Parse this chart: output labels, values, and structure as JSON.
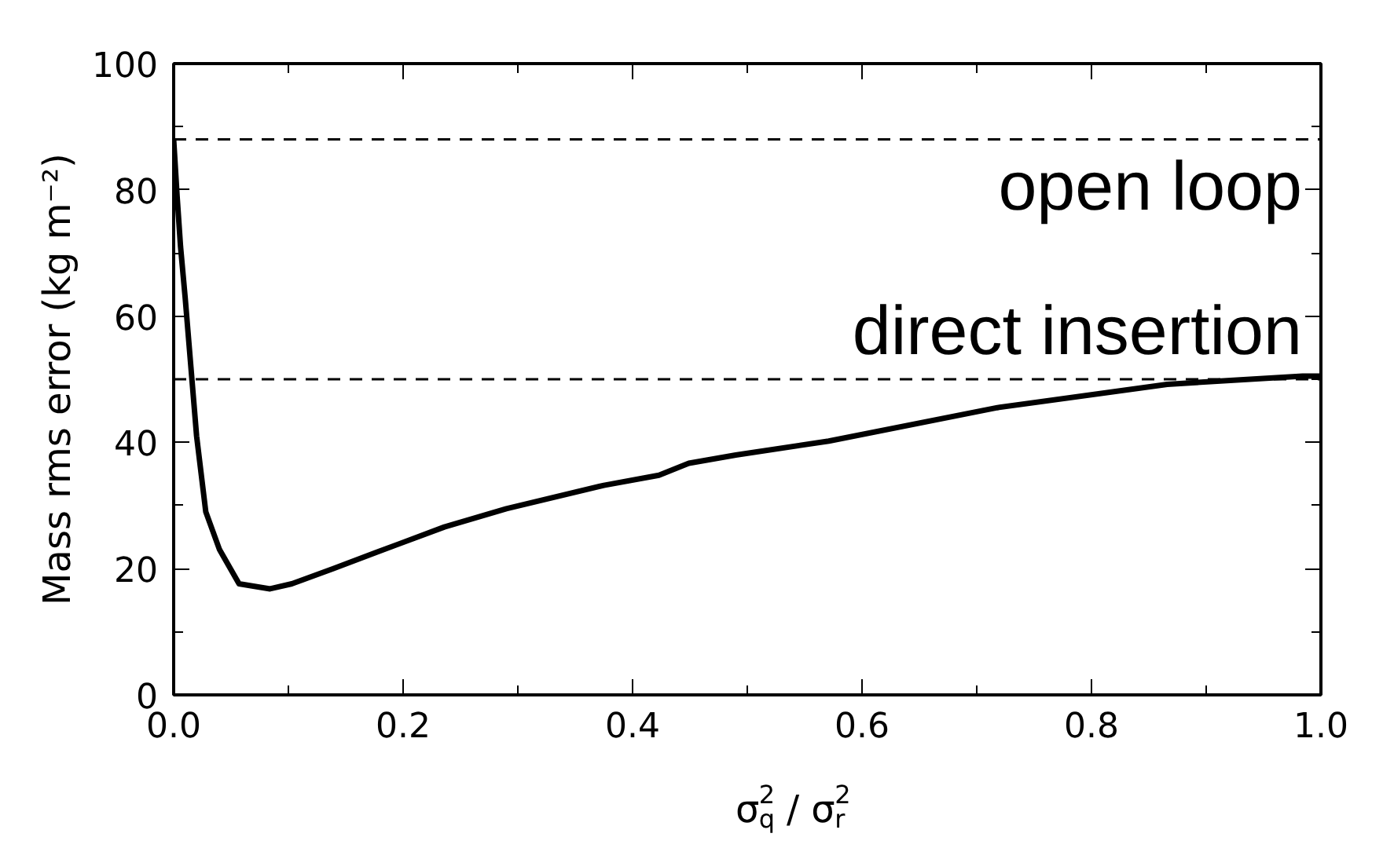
{
  "chart_data": {
    "type": "line",
    "xlabel": "σ$_{q}$$^{2}$ / σ$_{r}$$^{2}$",
    "ylabel": "Mass rms error (kg m⁻²)",
    "x": [
      0,
      0.003,
      0.006,
      0.01,
      0.015,
      0.02,
      0.028,
      0.04,
      0.057,
      0.084,
      0.103,
      0.139,
      0.177,
      0.236,
      0.29,
      0.375,
      0.423,
      0.449,
      0.49,
      0.571,
      0.718,
      0.866,
      0.984,
      1.0
    ],
    "series": [
      {
        "color": "#000000",
        "values": [
          88,
          79,
          71,
          63,
          52,
          41,
          29,
          23,
          17.6,
          16.8,
          17.6,
          20,
          22.6,
          26.6,
          29.5,
          33.2,
          34.8,
          36.7,
          38,
          40.2,
          45.5,
          49.2,
          50.5,
          50.5
        ]
      }
    ],
    "xlim": [
      0,
      1.0
    ],
    "ylim": [
      0,
      100
    ],
    "xticks": [
      {
        "value": 0,
        "label": "0.0"
      },
      0.2,
      0.4,
      0.6,
      0.8,
      {
        "value": 1.0,
        "label": "1.0"
      }
    ],
    "yticks": [
      0,
      20,
      40,
      60,
      80,
      100
    ],
    "ref_lines": [
      {
        "axis": "y",
        "value": 88,
        "label": "open loop",
        "line_style": "dashed",
        "color": "#000000"
      },
      {
        "axis": "y",
        "value": 50,
        "label": "direct insertion",
        "line_style": "dashed",
        "color": "#000000"
      }
    ],
    "marker": "none",
    "line_style": "solid"
  }
}
